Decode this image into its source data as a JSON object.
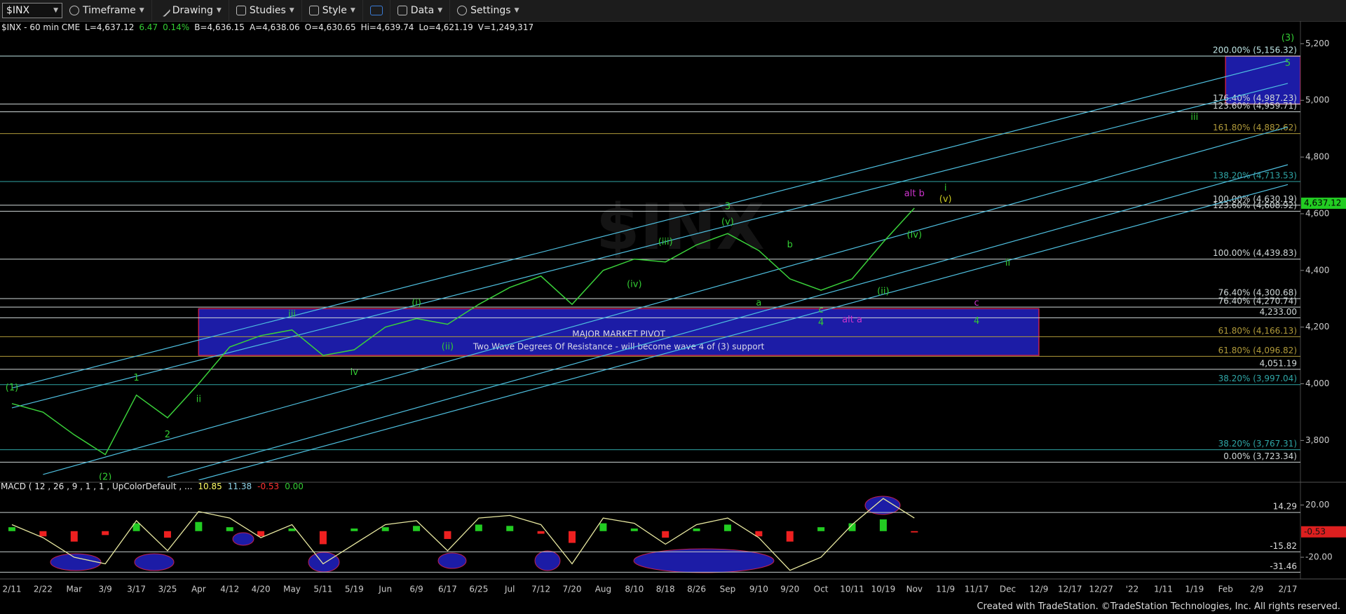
{
  "toolbar": {
    "symbol": "$INX",
    "buttons": [
      "Timeframe",
      "Drawing",
      "Studies",
      "Style",
      "Data",
      "Settings"
    ]
  },
  "footer": "Created with TradeStation. ©TradeStation Technologies, Inc. All rights reserved.",
  "chart_data": [
    {
      "type": "line",
      "title": "$INX - 60 min CME",
      "quote": [
        "L=4,637.12",
        "6.47",
        "0.14%",
        "B=4,636.15",
        "A=4,638.06",
        "O=4,630.65",
        "Hi=4,639.74",
        "Lo=4,621.19",
        "V=1,249,317"
      ],
      "categories": [
        "2/11",
        "2/22",
        "Mar",
        "3/9",
        "3/17",
        "3/25",
        "Apr",
        "4/12",
        "4/20",
        "May",
        "5/11",
        "5/19",
        "Jun",
        "6/9",
        "6/17",
        "6/25",
        "Jul",
        "7/12",
        "7/20",
        "Aug",
        "8/10",
        "8/18",
        "8/26",
        "Sep",
        "9/10",
        "9/20",
        "Oct",
        "10/11",
        "10/19",
        "Nov",
        "11/9",
        "11/17",
        "Dec",
        "12/9",
        "12/17",
        "12/27",
        "'22",
        "1/11",
        "1/19",
        "Feb",
        "2/9",
        "2/17"
      ],
      "values": [
        3930,
        3900,
        3820,
        3750,
        3960,
        3880,
        4000,
        4130,
        4170,
        4190,
        4100,
        4120,
        4200,
        4230,
        4210,
        4280,
        4340,
        4380,
        4280,
        4400,
        4440,
        4430,
        4490,
        4530,
        4470,
        4370,
        4330,
        4370,
        4500,
        4620,
        null,
        null,
        null,
        null,
        null,
        null,
        null,
        null,
        null,
        null,
        null,
        null
      ],
      "color": "#3ad13a",
      "ylim": [
        3660,
        5280
      ],
      "yticks": [
        {
          "value": 3800,
          "label": "3,800"
        },
        {
          "value": 4000,
          "label": "4,000"
        },
        {
          "value": 4200,
          "label": "4,200"
        },
        {
          "value": 4400,
          "label": "4,400"
        },
        {
          "value": 4600,
          "label": "4,600"
        },
        {
          "value": 4800,
          "label": "4,800"
        },
        {
          "value": 5000,
          "label": "5,000"
        },
        {
          "value": 5200,
          "label": "5,200"
        }
      ],
      "last": {
        "value": 4637.12,
        "label": "4,637.12",
        "color": "#22cc22"
      },
      "levels": [
        {
          "value": 5156.32,
          "label": "200.00% (5,156.32)",
          "color": "#bfe6e6"
        },
        {
          "value": 4987.23,
          "label": "176.40% (4,987.23)",
          "color": "#d0d8d8"
        },
        {
          "value": 4959.71,
          "label": "123.60% (4,959.71)",
          "color": "#d0d8d8"
        },
        {
          "value": 4882.62,
          "label": "161.80% (4,882.62)",
          "color": "#b09a3a"
        },
        {
          "value": 4713.53,
          "label": "138.20% (4,713.53)",
          "color": "#2fa6a6"
        },
        {
          "value": 4630.19,
          "label": "100.00% (4,630.19)",
          "color": "#d0d8d8"
        },
        {
          "value": 4608.92,
          "label": "123.60% (4,608.92)",
          "color": "#d0d8d8"
        },
        {
          "value": 4439.83,
          "label": "100.00% (4,439.83)",
          "color": "#d0d8d8"
        },
        {
          "value": 4300.68,
          "label": "76.40% (4,300.68)",
          "color": "#d0d8d8"
        },
        {
          "value": 4270.74,
          "label": "76.40% (4,270.74)",
          "color": "#d0d8d8"
        },
        {
          "value": 4233.0,
          "label": "4,233.00",
          "color": "#d0d8d8"
        },
        {
          "value": 4166.13,
          "label": "61.80% (4,166.13)",
          "color": "#b09a3a"
        },
        {
          "value": 4096.82,
          "label": "61.80% (4,096.82)",
          "color": "#b09a3a"
        },
        {
          "value": 4051.19,
          "label": "4,051.19",
          "color": "#d0d8d8"
        },
        {
          "value": 3997.04,
          "label": "38.20% (3,997.04)",
          "color": "#2fa6a6"
        },
        {
          "value": 3767.31,
          "label": "38.20% (3,767.31)",
          "color": "#2fa6a6"
        },
        {
          "value": 3723.34,
          "label": "0.00% (3,723.34)",
          "color": "#d0d8d8"
        }
      ],
      "boxes": [
        {
          "x": [
            "Apr",
            "12/9"
          ],
          "y": [
            4100,
            4265
          ],
          "label": "MAJOR MARKET PIVOT",
          "note": "Two Wave Degrees Of Resistance - will become wave 4 of (3) support"
        },
        {
          "x": [
            "Feb",
            "2/17"
          ],
          "y": [
            4987,
            5156
          ]
        }
      ],
      "box_color": "#1c1ca6",
      "box_border": "#c02050",
      "trendlines": [
        {
          "x": [
            "2/11",
            "2/17"
          ],
          "y": [
            3985,
            5140
          ]
        },
        {
          "x": [
            "2/11",
            "2/17"
          ],
          "y": [
            3915,
            5060
          ]
        },
        {
          "x": [
            "2/22",
            "2/17"
          ],
          "y": [
            3680,
            4906
          ]
        },
        {
          "x": [
            "3/25",
            "2/17"
          ],
          "y": [
            3670,
            4773
          ]
        },
        {
          "x": [
            "Apr",
            "2/17"
          ],
          "y": [
            3660,
            4703
          ]
        }
      ],
      "trend_color": "#4fc0e0",
      "annotations": [
        {
          "text": "(1)",
          "x": "2/11",
          "y": 3985,
          "color": "#33cc33"
        },
        {
          "text": "(2)",
          "x": "3/9",
          "y": 3670,
          "color": "#33cc33"
        },
        {
          "text": "1",
          "x": "3/17",
          "y": 4020,
          "color": "#33cc33"
        },
        {
          "text": "2",
          "x": "3/25",
          "y": 3820,
          "color": "#33cc33"
        },
        {
          "text": "ii",
          "x": "Apr",
          "y": 3945,
          "color": "#33cc33"
        },
        {
          "text": "iii",
          "x": "May",
          "y": 4245,
          "color": "#33cc33"
        },
        {
          "text": "iv",
          "x": "5/19",
          "y": 4040,
          "color": "#33cc33"
        },
        {
          "text": "(i)",
          "x": "6/9",
          "y": 4285,
          "color": "#33cc33"
        },
        {
          "text": "(ii)",
          "x": "6/17",
          "y": 4130,
          "color": "#33cc33"
        },
        {
          "text": "(iii)",
          "x": "8/18",
          "y": 4500,
          "color": "#33cc33"
        },
        {
          "text": "(iv)",
          "x": "8/10",
          "y": 4350,
          "color": "#33cc33"
        },
        {
          "text": "3",
          "x": "Sep",
          "y": 4625,
          "color": "#33cc33"
        },
        {
          "text": "(v)",
          "x": "Sep",
          "y": 4570,
          "color": "#33cc33"
        },
        {
          "text": "b",
          "x": "9/20",
          "y": 4490,
          "color": "#33cc33"
        },
        {
          "text": "a",
          "x": "9/10",
          "y": 4285,
          "color": "#33cc33"
        },
        {
          "text": "c",
          "x": "Oct",
          "y": 4260,
          "color": "#33cc33"
        },
        {
          "text": "4",
          "x": "Oct",
          "y": 4215,
          "color": "#33cc33"
        },
        {
          "text": "alt a",
          "x": "10/11",
          "y": 4225,
          "color": "#cc33cc"
        },
        {
          "text": "(ii)",
          "x": "10/19",
          "y": 4325,
          "color": "#33cc33"
        },
        {
          "text": "(iv)",
          "x": "Nov",
          "y": 4525,
          "color": "#33cc33"
        },
        {
          "text": "alt b",
          "x": "Nov",
          "y": 4670,
          "color": "#cc33cc"
        },
        {
          "text": "i",
          "x": "11/9",
          "y": 4690,
          "color": "#33cc33"
        },
        {
          "text": "(v)",
          "x": "11/9",
          "y": 4650,
          "color": "#c8c820"
        },
        {
          "text": "ii",
          "x": "Dec",
          "y": 4425,
          "color": "#33cc33"
        },
        {
          "text": "c",
          "x": "11/17",
          "y": 4285,
          "color": "#cc33cc"
        },
        {
          "text": "4",
          "x": "11/17",
          "y": 4220,
          "color": "#33cc33"
        },
        {
          "text": "iii",
          "x": "1/19",
          "y": 4940,
          "color": "#33cc33"
        },
        {
          "text": "5",
          "x": "2/17",
          "y": 5130,
          "color": "#33cc33"
        },
        {
          "text": "(3)",
          "x": "2/17",
          "y": 5220,
          "color": "#33cc33"
        }
      ]
    },
    {
      "type": "macd",
      "title": "MACD ( 12 , 26 , 9 , 1 , 1 , UpColorDefault , ...",
      "readout": [
        "10.85",
        "11.38",
        "-0.53",
        "0.00"
      ],
      "readout_colors": [
        "#ffff66",
        "#8fd4e8",
        "#ff3030",
        "#33cc33"
      ],
      "series": [
        {
          "color": "#e8e8a0",
          "values": [
            5,
            -5,
            -20,
            -25,
            8,
            -15,
            15,
            10,
            -5,
            5,
            -25,
            -10,
            5,
            8,
            -15,
            10,
            12,
            5,
            -25,
            10,
            6,
            -10,
            5,
            10,
            -5,
            -30,
            -20,
            5,
            25,
            10,
            null,
            null,
            null,
            null,
            null,
            null,
            null,
            null,
            null,
            null,
            null,
            null
          ]
        },
        {
          "color": "#22cc22",
          "negative_color": "#ee2020",
          "values": [
            3,
            -4,
            -8,
            -3,
            6,
            -5,
            7,
            3,
            -4,
            2,
            -10,
            2,
            3,
            4,
            -6,
            5,
            4,
            -2,
            -9,
            6,
            2,
            -5,
            2,
            5,
            -4,
            -8,
            3,
            6,
            9,
            -1,
            null,
            null,
            null,
            null,
            null,
            null,
            null,
            null,
            null,
            null,
            null,
            null
          ]
        }
      ],
      "ylim": [
        -35,
        31
      ],
      "yticks": [
        {
          "value": 20,
          "label": "20.00"
        },
        {
          "value": -20,
          "label": "-20.00"
        }
      ],
      "levels": [
        {
          "value": 14.29,
          "label": "14.29"
        },
        {
          "value": -15.82,
          "label": "-15.82"
        },
        {
          "value": -31.46,
          "label": "-31.46"
        }
      ],
      "level_color": "#c8d0d0",
      "last": {
        "value": -0.53,
        "label": "-0.53",
        "color": "#dd1f1f"
      }
    }
  ]
}
